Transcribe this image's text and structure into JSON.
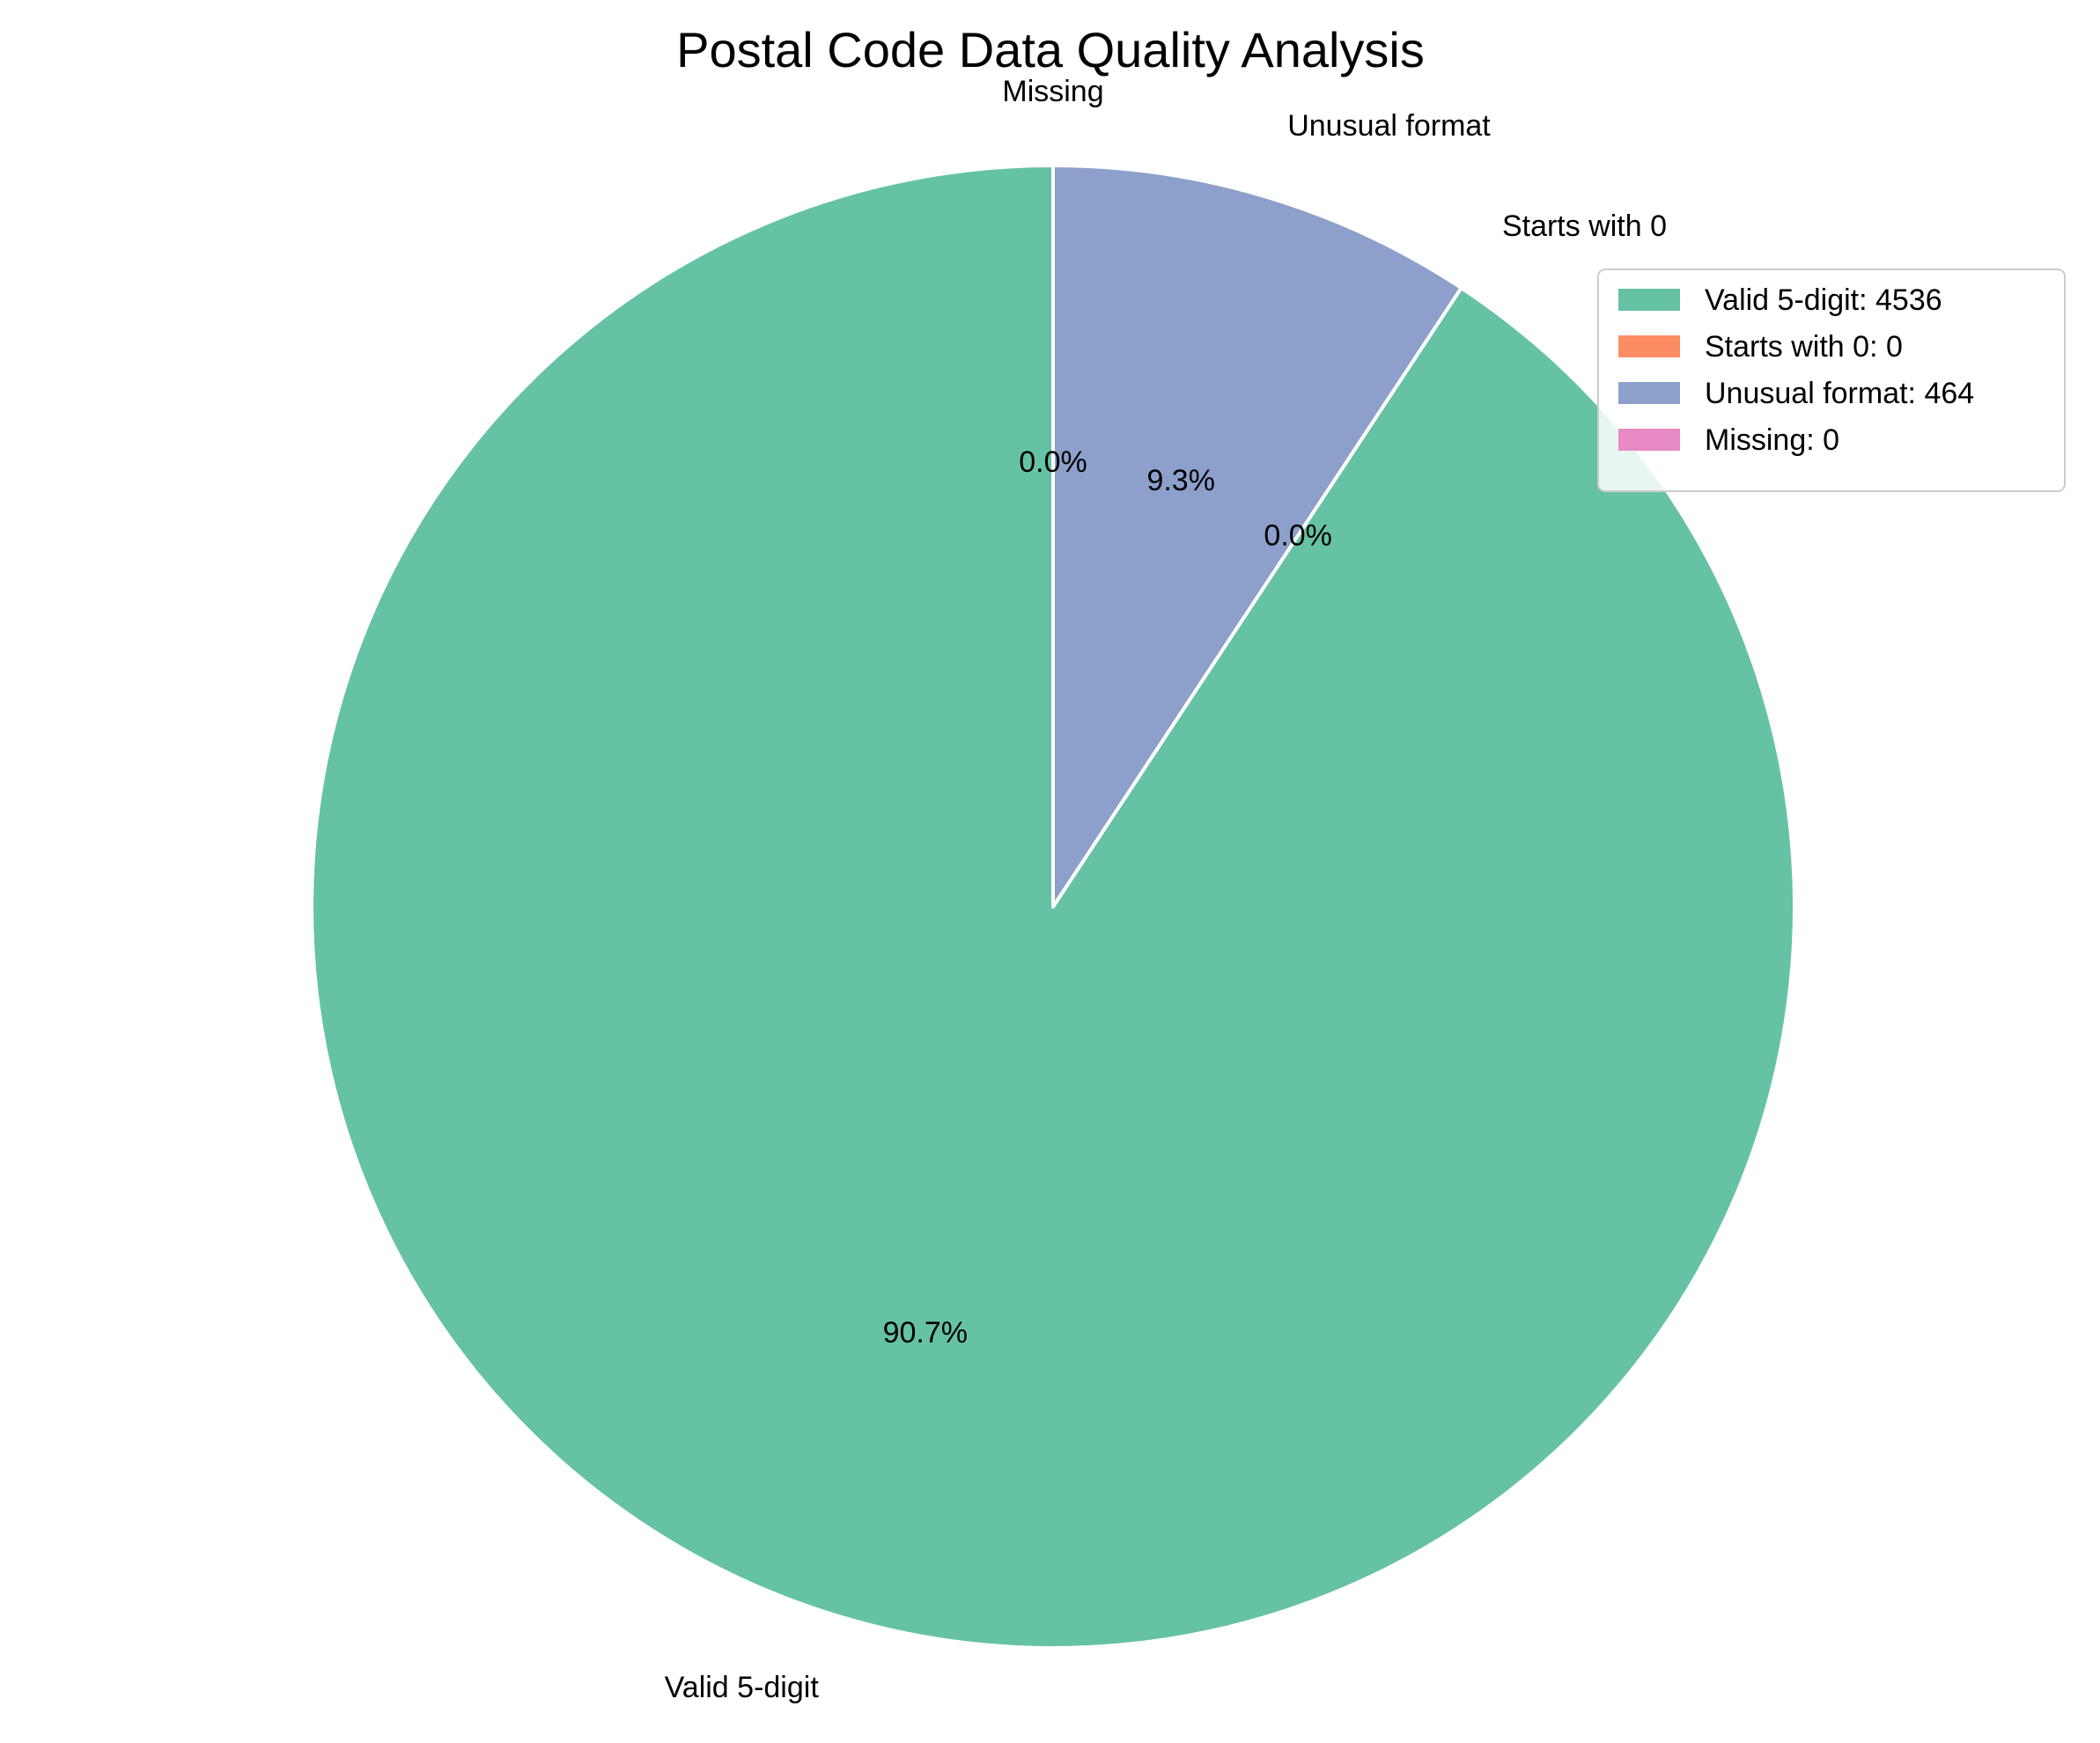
{
  "chart_data": {
    "type": "pie",
    "title": "Postal Code Data Quality Analysis",
    "start_angle_deg": 90,
    "direction": "counterclockwise",
    "legend_position": "top-right",
    "slices": [
      {
        "label": "Valid 5-digit",
        "value": 4536,
        "pct_label": "90.7%",
        "legend_label": "Valid 5-digit: 4536",
        "color": "#66c2a5"
      },
      {
        "label": "Starts with 0",
        "value": 0,
        "pct_label": "0.0%",
        "legend_label": "Starts with 0: 0",
        "color": "#fc8d62"
      },
      {
        "label": "Unusual format",
        "value": 464,
        "pct_label": "9.3%",
        "legend_label": "Unusual format: 464",
        "color": "#8da0cb"
      },
      {
        "label": "Missing",
        "value": 0,
        "pct_label": "0.0%",
        "legend_label": "Missing: 0",
        "color": "#e78ac3"
      }
    ]
  }
}
